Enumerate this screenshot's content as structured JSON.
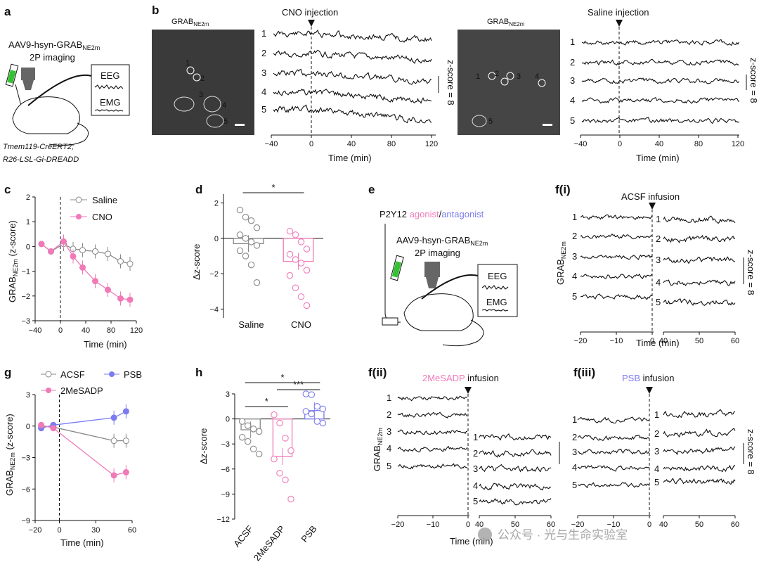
{
  "panels": {
    "a": {
      "label": "a",
      "virus": "AAV9-hsyn-GRAB",
      "virus_sub": "NE2m",
      "imaging": "2P imaging",
      "eeg": "EEG",
      "emg": "EMG",
      "mouse_line1": "Tmem119-CreERT2;",
      "mouse_line2": "R26-LSL-Gi-DREADD"
    },
    "b": {
      "label": "b",
      "img_title": "GRAB",
      "img_title_sub": "NE2m",
      "left_event": "CNO injection",
      "right_event": "Saline injection",
      "xlabel": "Time (min)",
      "scale": "z-score = 8",
      "xticks": [
        "−40",
        "0",
        "40",
        "80",
        "120"
      ],
      "roi_labels": [
        "1",
        "2",
        "3",
        "4",
        "5"
      ]
    },
    "c": {
      "label": "c",
      "xlabel": "Time (min)",
      "ylabel": "GRAB",
      "ylabel_sub": "NE2m",
      "ylabel_tail": " (z-score)",
      "yticks": [
        "2",
        "1",
        "0",
        "−1",
        "−2",
        "−3"
      ],
      "xticks": [
        "−40",
        "0",
        "40",
        "80",
        "120"
      ]
    },
    "d": {
      "label": "d",
      "ylabel": "Δz-score",
      "sig": "*",
      "categories": [
        "Saline",
        "CNO"
      ],
      "yticks": [
        "2",
        "0",
        "−2",
        "−4"
      ]
    },
    "e": {
      "label": "e",
      "drug_prefix": "P2Y12 ",
      "agonist": "agonist",
      "slash": "/",
      "antagonist": "antagonist",
      "virus": "AAV9-hsyn-GRAB",
      "virus_sub": "NE2m",
      "imaging": "2P imaging",
      "eeg": "EEG",
      "emg": "EMG"
    },
    "f1": {
      "label": "f(i)",
      "event": "ACSF infusion",
      "xlabel": "Time (min)",
      "ylabel": "GRAB",
      "ylabel_sub": "NE2m",
      "scale": "z-score = 8",
      "xticks_left": [
        "−20",
        "−10",
        "0"
      ],
      "xticks_right": [
        "40",
        "50",
        "60"
      ]
    },
    "f2": {
      "label": "f(ii)",
      "event_drug": "2MeSADP",
      "event_tail": " infusion",
      "xlabel": "Time (min)",
      "ylabel": "GRAB",
      "ylabel_sub": "NE2m",
      "xticks_left": [
        "−20",
        "−10",
        "0"
      ],
      "xticks_right": [
        "40",
        "50",
        "60"
      ]
    },
    "f3": {
      "label": "f(iii)",
      "event_drug": "PSB",
      "event_tail": " infusion",
      "xlabel": "Time (min)",
      "scale": "z-score = 8",
      "xticks_left": [
        "−20",
        "−10",
        "0"
      ],
      "xticks_right": [
        "40",
        "50",
        "60"
      ]
    },
    "g": {
      "label": "g",
      "xlabel": "Time (min)",
      "ylabel": "GRAB",
      "ylabel_sub": "NE2m",
      "ylabel_tail": " (z-score)",
      "yticks": [
        "3",
        "0",
        "−3",
        "−6",
        "−9"
      ],
      "xticks": [
        "−20",
        "0",
        "30",
        "60"
      ]
    },
    "h": {
      "label": "h",
      "ylabel": "Δz-score",
      "sig1": "*",
      "sig2": "*",
      "sig3": "***",
      "categories": [
        "ACSF",
        "2MeSADP",
        "PSB"
      ],
      "yticks": [
        "3",
        "0",
        "−3",
        "−6",
        "−9",
        "−12"
      ]
    }
  },
  "watermark": "公众号 · 光与生命实验室",
  "colors": {
    "pink": "#f07ab8",
    "blue": "#7c7cf0",
    "grey": "#888888"
  },
  "chart_data": [
    {
      "type": "line",
      "panel": "c",
      "xlabel": "Time (min)",
      "ylabel": "GRABNE2m (z-score)",
      "xlim": [
        -40,
        120
      ],
      "ylim": [
        -3,
        2
      ],
      "series": [
        {
          "name": "Saline",
          "x": [
            -30,
            -15,
            5,
            20,
            35,
            55,
            75,
            95,
            110
          ],
          "y": [
            0.1,
            -0.2,
            0.1,
            -0.1,
            -0.15,
            -0.2,
            -0.3,
            -0.6,
            -0.7
          ]
        },
        {
          "name": "CNO",
          "x": [
            -30,
            -15,
            5,
            20,
            35,
            55,
            75,
            95,
            110
          ],
          "y": [
            0.1,
            -0.2,
            0.2,
            -0.4,
            -0.85,
            -1.4,
            -1.75,
            -2.1,
            -2.15
          ]
        }
      ]
    },
    {
      "type": "bar",
      "panel": "d",
      "categories": [
        "Saline",
        "CNO"
      ],
      "values": [
        -0.3,
        -1.3
      ],
      "ylim": [
        -4.5,
        2.5
      ],
      "ylabel": "Δz-score",
      "points": {
        "Saline": [
          1.6,
          1.2,
          1.0,
          0.6,
          0.2,
          0.0,
          -0.2,
          -0.4,
          -0.7,
          -1.0,
          -1.5,
          -2.5
        ],
        "CNO": [
          0.4,
          0.2,
          -0.2,
          -0.6,
          -0.9,
          -1.2,
          -1.4,
          -1.8,
          -2.1,
          -2.8,
          -3.3,
          -3.8
        ]
      }
    },
    {
      "type": "line",
      "panel": "g",
      "xlabel": "Time (min)",
      "ylabel": "GRABNE2m (z-score)",
      "xlim": [
        -20,
        60
      ],
      "ylim": [
        -9,
        3
      ],
      "series": [
        {
          "name": "ACSF",
          "x": [
            -15,
            -5,
            45,
            55
          ],
          "y": [
            0.0,
            -0.1,
            -1.4,
            -1.4
          ]
        },
        {
          "name": "PSB",
          "x": [
            -15,
            -5,
            45,
            55
          ],
          "y": [
            -0.2,
            0.1,
            0.8,
            1.4
          ]
        },
        {
          "name": "2MeSADP",
          "x": [
            -15,
            -5,
            45,
            55
          ],
          "y": [
            0.1,
            -0.2,
            -4.7,
            -4.4
          ]
        }
      ]
    },
    {
      "type": "bar",
      "panel": "h",
      "categories": [
        "ACSF",
        "2MeSADP",
        "PSB"
      ],
      "values": [
        -1.3,
        -4.5,
        1.0
      ],
      "ylim": [
        -12,
        3
      ],
      "ylabel": "Δz-score",
      "points": {
        "ACSF": [
          -0.3,
          -0.8,
          -1.2,
          -1.5,
          -2.2,
          -2.7,
          -3.6,
          -4.2
        ],
        "2MeSADP": [
          0.5,
          -0.5,
          -2.3,
          -3.8,
          -4.8,
          -6.5,
          -7.3,
          -9.6
        ],
        "PSB": [
          3.0,
          2.9,
          1.5,
          1.2,
          0.9,
          0.6,
          -0.3,
          -0.5
        ]
      }
    }
  ]
}
